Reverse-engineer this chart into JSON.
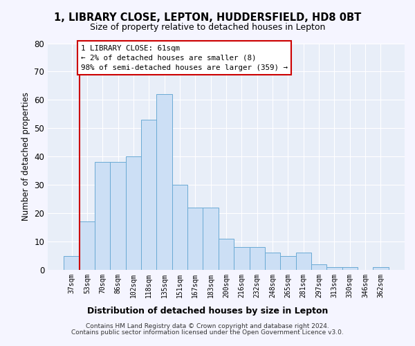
{
  "title": "1, LIBRARY CLOSE, LEPTON, HUDDERSFIELD, HD8 0BT",
  "subtitle": "Size of property relative to detached houses in Lepton",
  "xlabel": "Distribution of detached houses by size in Lepton",
  "ylabel": "Number of detached properties",
  "bar_color": "#ccdff5",
  "bar_edge_color": "#6aaad4",
  "background_color": "#e8eef8",
  "grid_color": "#ffffff",
  "plot_bg_color": "#dce6f5",
  "categories": [
    "37sqm",
    "53sqm",
    "70sqm",
    "86sqm",
    "102sqm",
    "118sqm",
    "135sqm",
    "151sqm",
    "167sqm",
    "183sqm",
    "200sqm",
    "216sqm",
    "232sqm",
    "248sqm",
    "265sqm",
    "281sqm",
    "297sqm",
    "313sqm",
    "330sqm",
    "346sqm",
    "362sqm"
  ],
  "values": [
    5,
    17,
    38,
    38,
    40,
    53,
    62,
    30,
    22,
    22,
    11,
    8,
    8,
    6,
    5,
    6,
    2,
    1,
    1,
    0,
    1
  ],
  "ylim": [
    0,
    80
  ],
  "yticks": [
    0,
    10,
    20,
    30,
    40,
    50,
    60,
    70,
    80
  ],
  "annotation_text": "1 LIBRARY CLOSE: 61sqm\n← 2% of detached houses are smaller (8)\n98% of semi-detached houses are larger (359) →",
  "annotation_box_color": "#ffffff",
  "annotation_box_edge_color": "#cc0000",
  "ref_line_color": "#cc0000",
  "footer_line1": "Contains HM Land Registry data © Crown copyright and database right 2024.",
  "footer_line2": "Contains public sector information licensed under the Open Government Licence v3.0."
}
